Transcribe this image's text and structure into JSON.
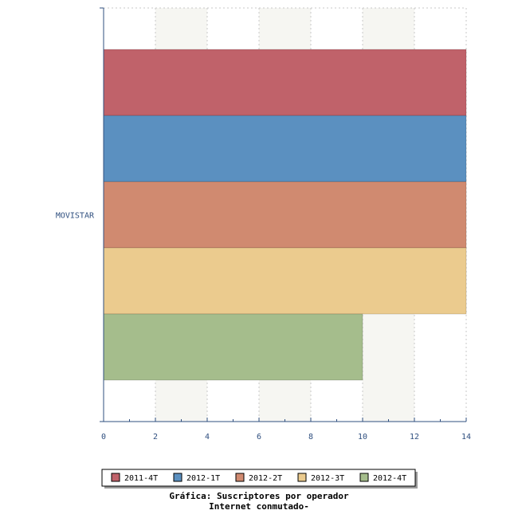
{
  "chart_data": {
    "type": "bar",
    "orientation": "horizontal",
    "title": "Gráfica: Suscriptores por operador",
    "subtitle": "Internet conmutado-",
    "categories": [
      "MOVISTAR"
    ],
    "series": [
      {
        "name": "2011-4T",
        "color": "#c0626a",
        "values": [
          14
        ]
      },
      {
        "name": "2012-1T",
        "color": "#5b90c0",
        "values": [
          14
        ]
      },
      {
        "name": "2012-2T",
        "color": "#d08a70",
        "values": [
          14
        ]
      },
      {
        "name": "2012-3T",
        "color": "#ebcb8e",
        "values": [
          14
        ]
      },
      {
        "name": "2012-4T",
        "color": "#a5bd8c",
        "values": [
          10
        ]
      }
    ],
    "xlim": [
      0,
      14
    ],
    "x_ticks": [
      0,
      2,
      4,
      6,
      8,
      10,
      12,
      14
    ],
    "grid": true,
    "legend_position": "bottom"
  }
}
